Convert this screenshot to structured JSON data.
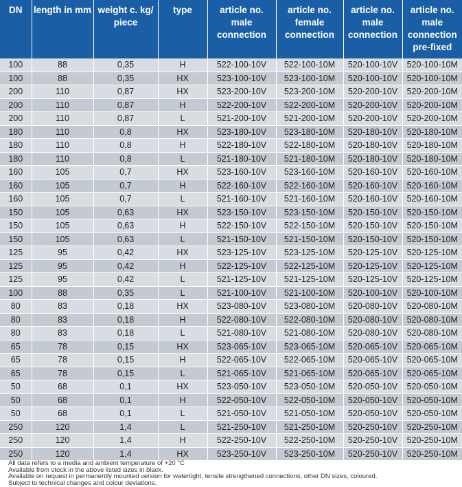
{
  "headers": [
    "DN",
    "length in mm",
    "weight c. kg/ piece",
    "type",
    "article no. male connection",
    "article no. female connection",
    "article no. male connection",
    "article no. male connection pre-fixed"
  ],
  "rows": [
    [
      "100",
      "88",
      "0,35",
      "H",
      "522-100-10V",
      "522-100-10M",
      "520-100-10V",
      "520-100-10M"
    ],
    [
      "100",
      "88",
      "0,35",
      "HX",
      "523-100-10V",
      "523-100-10M",
      "520-100-10V",
      "520-100-10M"
    ],
    [
      "200",
      "110",
      "0,87",
      "HX",
      "523-200-10V",
      "523-200-10M",
      "520-200-10V",
      "520-200-10M"
    ],
    [
      "200",
      "110",
      "0,87",
      "H",
      "522-200-10V",
      "522-200-10M",
      "520-200-10V",
      "520-200-10M"
    ],
    [
      "200",
      "110",
      "0,87",
      "L",
      "521-200-10V",
      "521-200-10M",
      "520-200-10V",
      "520-200-10M"
    ],
    [
      "180",
      "110",
      "0,8",
      "HX",
      "523-180-10V",
      "523-180-10M",
      "520-180-10V",
      "520-180-10M"
    ],
    [
      "180",
      "110",
      "0,8",
      "H",
      "522-180-10V",
      "522-180-10M",
      "520-180-10V",
      "520-180-10M"
    ],
    [
      "180",
      "110",
      "0,8",
      "L",
      "521-180-10V",
      "521-180-10M",
      "520-180-10V",
      "520-180-10M"
    ],
    [
      "160",
      "105",
      "0,7",
      "HX",
      "523-160-10V",
      "523-160-10M",
      "520-160-10V",
      "520-160-10M"
    ],
    [
      "160",
      "105",
      "0,7",
      "H",
      "522-160-10V",
      "522-160-10M",
      "520-160-10V",
      "520-160-10M"
    ],
    [
      "160",
      "105",
      "0,7",
      "L",
      "521-160-10V",
      "521-160-10M",
      "520-160-10V",
      "520-160-10M"
    ],
    [
      "150",
      "105",
      "0,63",
      "HX",
      "523-150-10V",
      "523-150-10M",
      "520-150-10V",
      "520-150-10M"
    ],
    [
      "150",
      "105",
      "0,63",
      "H",
      "522-150-10V",
      "522-150-10M",
      "520-150-10V",
      "520-150-10M"
    ],
    [
      "150",
      "105",
      "0,63",
      "L",
      "521-150-10V",
      "521-150-10M",
      "520-150-10V",
      "520-150-10M"
    ],
    [
      "125",
      "95",
      "0,42",
      "HX",
      "523-125-10V",
      "523-125-10M",
      "520-125-10V",
      "520-125-10M"
    ],
    [
      "125",
      "95",
      "0,42",
      "H",
      "522-125-10V",
      "522-125-10M",
      "520-125-10V",
      "520-125-10M"
    ],
    [
      "125",
      "95",
      "0,42",
      "L",
      "521-125-10V",
      "521-125-10M",
      "520-125-10V",
      "520-125-10M"
    ],
    [
      "100",
      "88",
      "0,35",
      "L",
      "521-100-10V",
      "521-100-10M",
      "520-100-10V",
      "520-100-10M"
    ],
    [
      "80",
      "83",
      "0,18",
      "HX",
      "523-080-10V",
      "523-080-10M",
      "520-080-10V",
      "520-080-10M"
    ],
    [
      "80",
      "83",
      "0,18",
      "H",
      "522-080-10V",
      "522-080-10M",
      "520-080-10V",
      "520-080-10M"
    ],
    [
      "80",
      "83",
      "0,18",
      "L",
      "521-080-10V",
      "521-080-10M",
      "520-080-10V",
      "520-080-10M"
    ],
    [
      "65",
      "78",
      "0,15",
      "HX",
      "523-065-10V",
      "523-065-10M",
      "520-065-10V",
      "520-065-10M"
    ],
    [
      "65",
      "78",
      "0,15",
      "H",
      "522-065-10V",
      "522-065-10M",
      "520-065-10V",
      "520-065-10M"
    ],
    [
      "65",
      "78",
      "0,15",
      "L",
      "521-065-10V",
      "521-065-10M",
      "520-065-10V",
      "520-065-10M"
    ],
    [
      "50",
      "68",
      "0,1",
      "HX",
      "523-050-10V",
      "523-050-10M",
      "520-050-10V",
      "520-050-10M"
    ],
    [
      "50",
      "68",
      "0,1",
      "H",
      "522-050-10V",
      "522-050-10M",
      "520-050-10V",
      "520-050-10M"
    ],
    [
      "50",
      "68",
      "0,1",
      "L",
      "521-050-10V",
      "521-050-10M",
      "520-050-10V",
      "520-050-10M"
    ],
    [
      "250",
      "120",
      "1,4",
      "L",
      "521-250-10V",
      "521-250-10M",
      "520-250-10V",
      "520-250-10M"
    ],
    [
      "250",
      "120",
      "1,4",
      "H",
      "522-250-10V",
      "522-250-10M",
      "520-250-10V",
      "520-250-10M"
    ],
    [
      "250",
      "120",
      "1,4",
      "HX",
      "523-250-10V",
      "523-250-10M",
      "520-250-10V",
      "520-250-10M"
    ]
  ],
  "notes": [
    "All data refers to a media and ambient temperature of +20 °C",
    "Available from stock in the above listed sizes in black.",
    "Available on request in permanently mounted version for watertight, tensile strengthened connections, other DN sizes, coloured.",
    "Subject to technical changes and colour deviations."
  ],
  "colors": {
    "header_bg": "#1a5fa6",
    "row_light": "#d9dde2",
    "row_dark": "#c4cad1"
  }
}
